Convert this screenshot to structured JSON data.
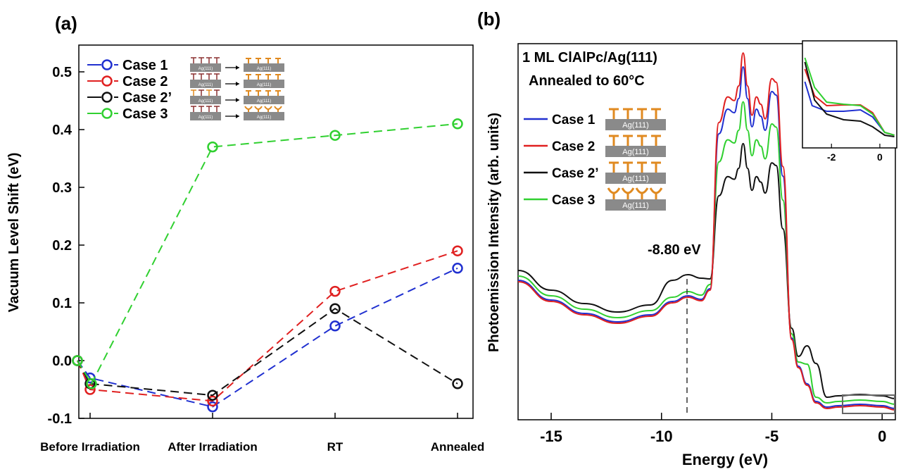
{
  "chart_data": [
    {
      "type": "line",
      "panel_label": "(a)",
      "ylabel": "Vacuum Level Shift (eV)",
      "xlabel": "",
      "categories": [
        "Before Irradiation",
        "After Irradiation",
        "RT",
        "Annealed"
      ],
      "ylim": [
        -0.1,
        0.55
      ],
      "y_ticks": [
        "-0.1",
        "0.0",
        "0.1",
        "0.2",
        "0.3",
        "0.4",
        "0.5"
      ],
      "legend_position": "top-left",
      "substrate_label": "Ag(111)",
      "series": [
        {
          "name": "Case 1",
          "color": "#2030d0",
          "values": [
            0.0,
            -0.08,
            0.06,
            0.16
          ],
          "first_point": -0.03
        },
        {
          "name": "Case 2",
          "color": "#e02020",
          "values": [
            0.0,
            -0.07,
            0.12,
            0.19
          ],
          "first_point": -0.05
        },
        {
          "name": "Case 2’",
          "color": "#111111",
          "values": [
            0.0,
            -0.06,
            0.09,
            -0.04
          ],
          "first_point": -0.04
        },
        {
          "name": "Case 3",
          "color": "#30d030",
          "values": [
            0.0,
            0.37,
            0.39,
            0.41
          ],
          "first_point": -0.04
        }
      ]
    },
    {
      "type": "line",
      "panel_label": "(b)",
      "title_line1": "1 ML ClAlPc/Ag(111)",
      "title_line2": "Annealed to 60°C",
      "xlabel": "Energy (eV)",
      "ylabel": "Photoemission Intensity (arb. units)",
      "xlim": [
        -16.5,
        0.6
      ],
      "x_ticks": [
        "-15",
        "-10",
        "-5",
        "0"
      ],
      "annotation": "-8.80 eV",
      "annotation_x": -8.8,
      "inset_x_ticks": [
        "-2",
        "0"
      ],
      "legend_position": "left",
      "substrate_label": "Ag(111)",
      "series": [
        {
          "name": "Case 1",
          "color": "#2030d0"
        },
        {
          "name": "Case 2",
          "color": "#e02020"
        },
        {
          "name": "Case 2’",
          "color": "#111111"
        },
        {
          "name": "Case 3",
          "color": "#30d030"
        }
      ]
    }
  ]
}
